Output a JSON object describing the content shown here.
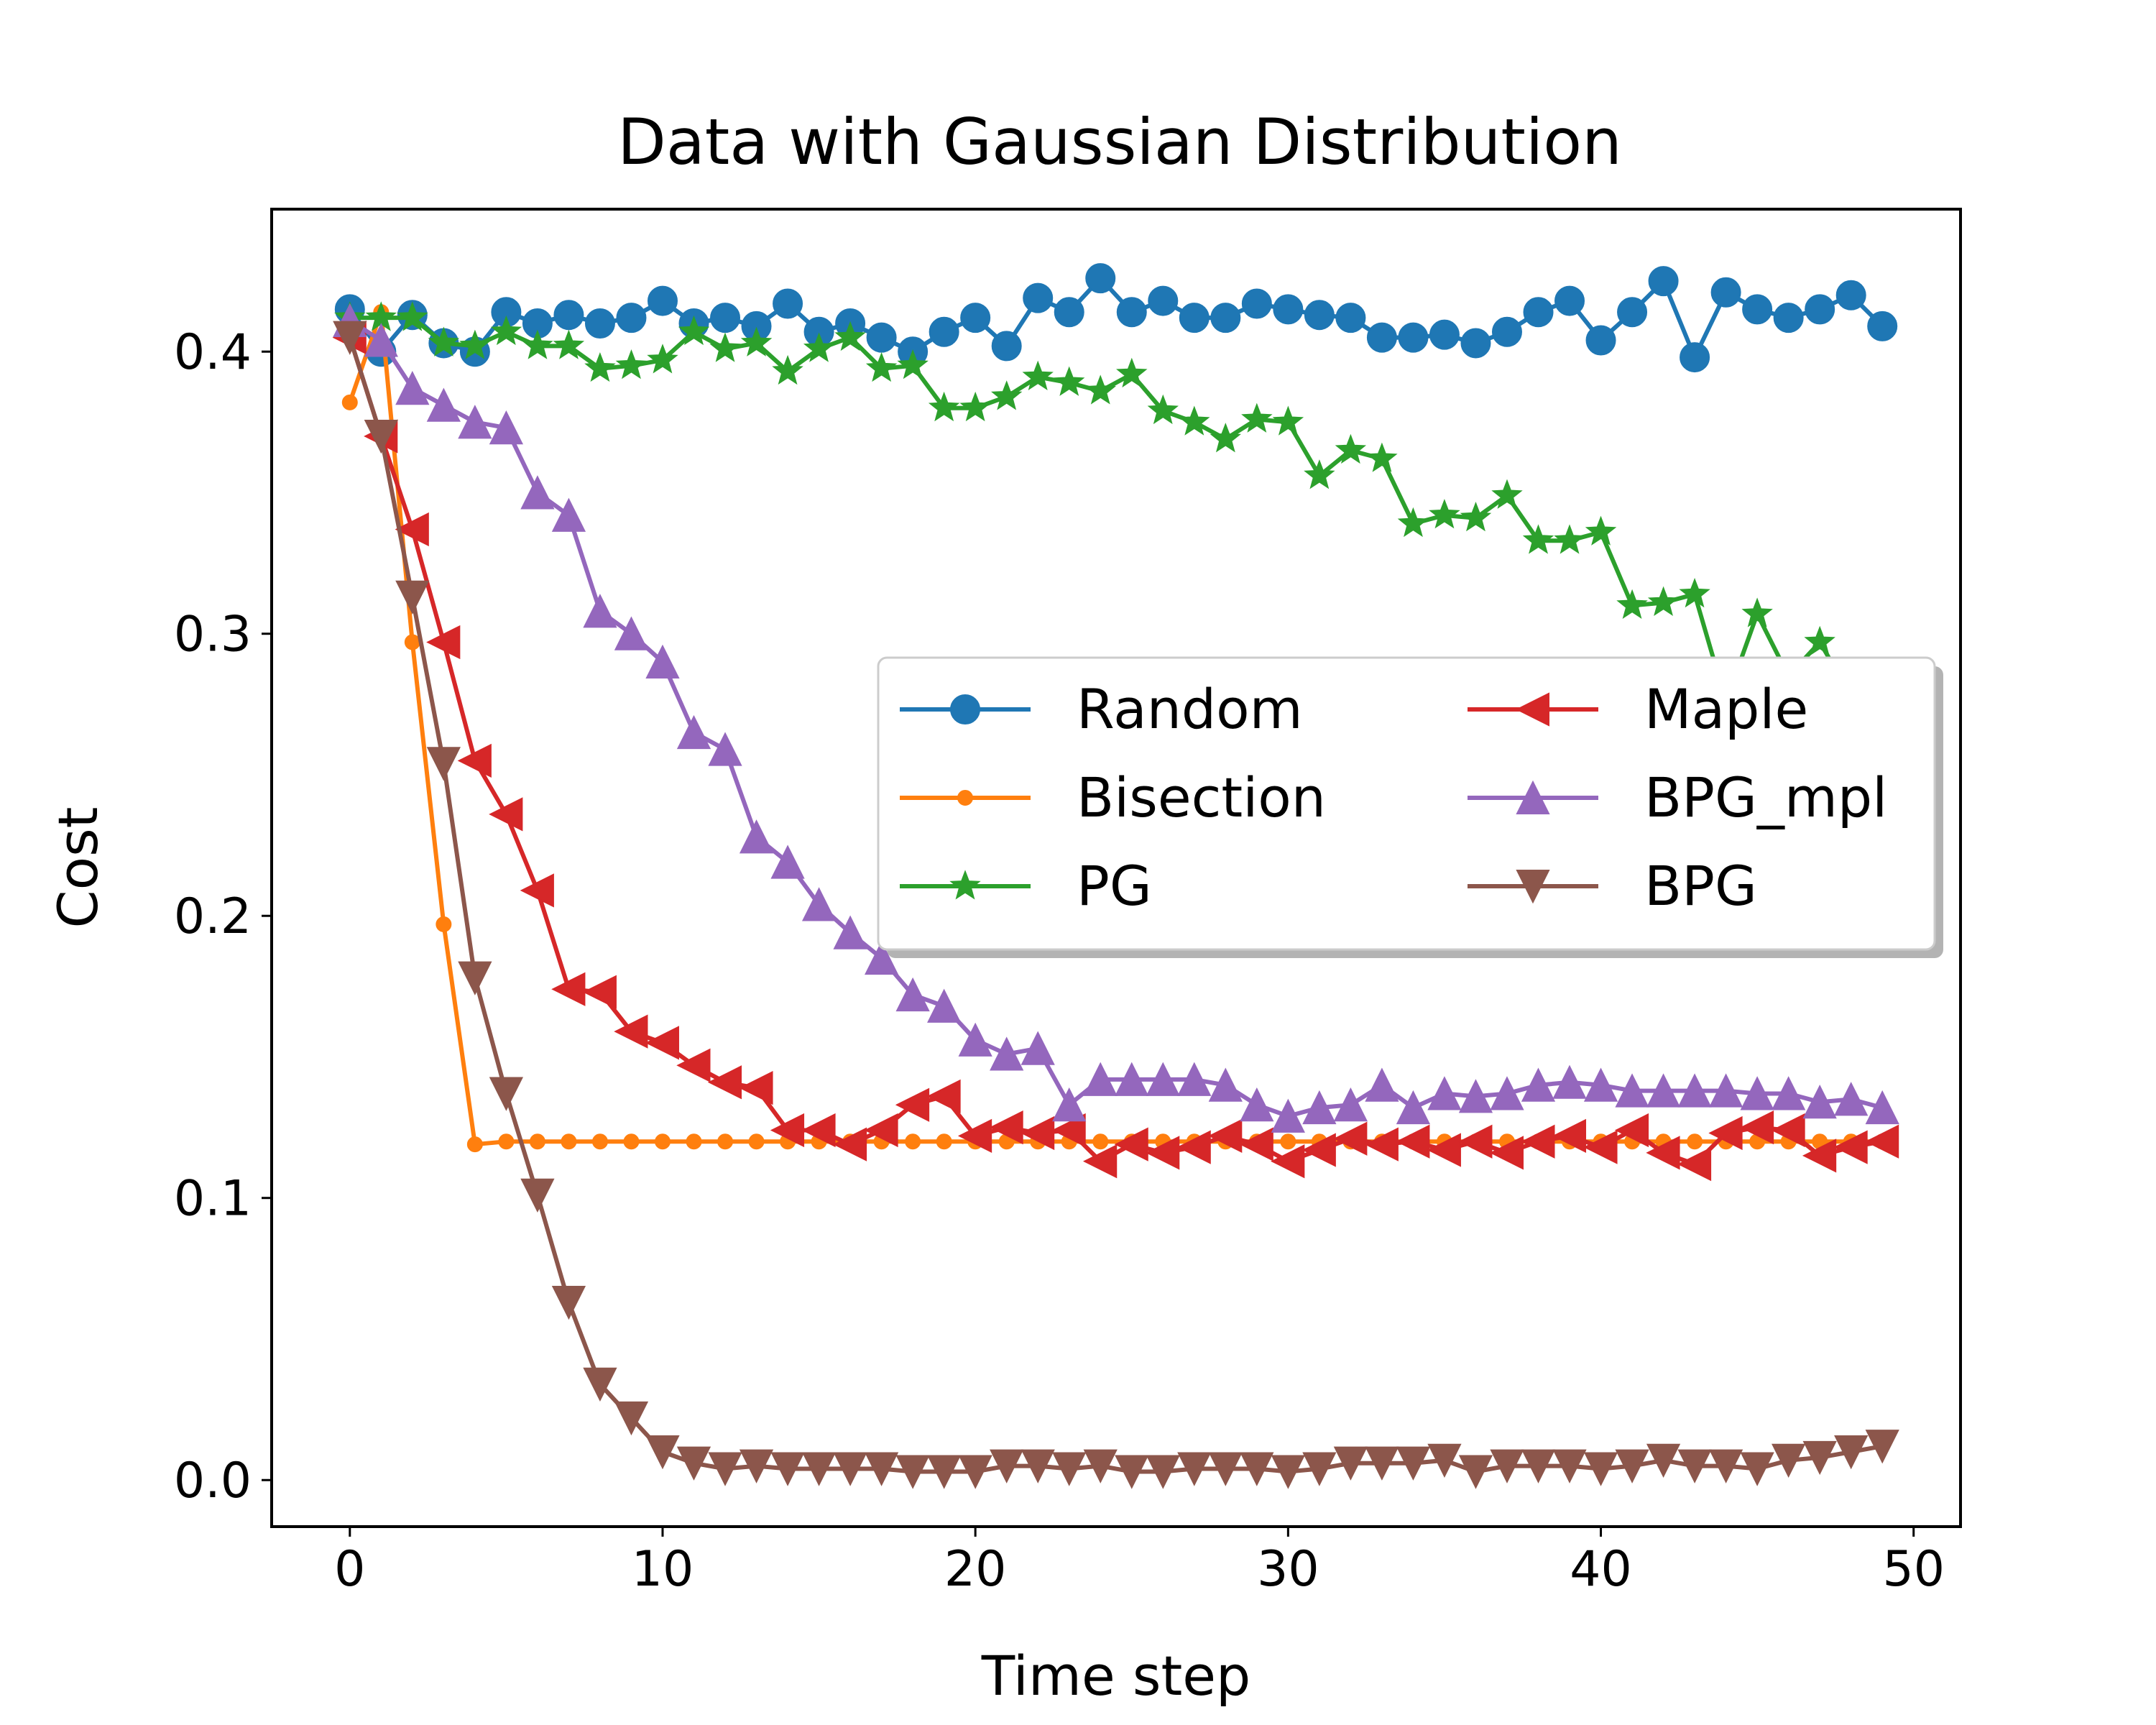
{
  "chart_data": {
    "type": "line",
    "title": "Data with Gaussian Distribution",
    "xlabel": "Time step",
    "ylabel": "Cost",
    "xlim": [
      -2.5,
      51.5
    ],
    "ylim": [
      -0.0165,
      0.4505
    ],
    "xticks": [
      0,
      10,
      20,
      30,
      40,
      50
    ],
    "yticks": [
      0.0,
      0.1,
      0.2,
      0.3,
      0.4
    ],
    "xtick_labels": [
      "0",
      "10",
      "20",
      "30",
      "40",
      "50"
    ],
    "ytick_labels": [
      "0.0",
      "0.1",
      "0.2",
      "0.3",
      "0.4"
    ],
    "grid": false,
    "legend": {
      "placement": "center-right",
      "columns": 2,
      "shadow": true
    },
    "x": [
      0,
      1,
      2,
      3,
      4,
      5,
      6,
      7,
      8,
      9,
      10,
      11,
      12,
      13,
      14,
      15,
      16,
      17,
      18,
      19,
      20,
      21,
      22,
      23,
      24,
      25,
      26,
      27,
      28,
      29,
      30,
      31,
      32,
      33,
      34,
      35,
      36,
      37,
      38,
      39,
      40,
      41,
      42,
      43,
      44,
      45,
      46,
      47,
      48,
      49
    ],
    "series": [
      {
        "name": "Random",
        "color": "#1f77b4",
        "marker": "circle",
        "values": [
          0.415,
          0.4,
          0.413,
          0.403,
          0.4,
          0.414,
          0.41,
          0.413,
          0.41,
          0.412,
          0.418,
          0.41,
          0.412,
          0.409,
          0.417,
          0.407,
          0.41,
          0.405,
          0.4,
          0.407,
          0.412,
          0.402,
          0.419,
          0.414,
          0.426,
          0.414,
          0.418,
          0.412,
          0.412,
          0.417,
          0.415,
          0.413,
          0.412,
          0.405,
          0.405,
          0.406,
          0.403,
          0.407,
          0.414,
          0.418,
          0.404,
          0.414,
          0.425,
          0.398,
          0.421,
          0.415,
          0.412,
          0.415,
          0.42,
          0.409
        ]
      },
      {
        "name": "Bisection",
        "color": "#ff7f0e",
        "marker": "point",
        "values": [
          0.382,
          0.414,
          0.297,
          0.197,
          0.119,
          0.12,
          0.12,
          0.12,
          0.12,
          0.12,
          0.12,
          0.12,
          0.12,
          0.12,
          0.12,
          0.12,
          0.12,
          0.12,
          0.12,
          0.12,
          0.12,
          0.12,
          0.12,
          0.12,
          0.12,
          0.12,
          0.12,
          0.12,
          0.12,
          0.12,
          0.12,
          0.12,
          0.12,
          0.12,
          0.12,
          0.12,
          0.12,
          0.12,
          0.12,
          0.12,
          0.12,
          0.12,
          0.12,
          0.12,
          0.12,
          0.12,
          0.12,
          0.12,
          0.12,
          0.12
        ]
      },
      {
        "name": "PG",
        "color": "#2ca02c",
        "marker": "star",
        "values": [
          0.412,
          0.412,
          0.412,
          0.403,
          0.402,
          0.407,
          0.402,
          0.402,
          0.394,
          0.395,
          0.397,
          0.407,
          0.401,
          0.403,
          0.393,
          0.401,
          0.405,
          0.394,
          0.395,
          0.38,
          0.38,
          0.384,
          0.391,
          0.389,
          0.386,
          0.392,
          0.379,
          0.375,
          0.369,
          0.376,
          0.375,
          0.356,
          0.365,
          0.362,
          0.339,
          0.342,
          0.341,
          0.349,
          0.333,
          0.333,
          0.336,
          0.31,
          0.311,
          0.314,
          0.276,
          0.307,
          0.285,
          0.297,
          0.278,
          0.275
        ]
      },
      {
        "name": "Maple",
        "color": "#d62728",
        "marker": "triangle-left",
        "values": [
          0.405,
          0.37,
          0.337,
          0.297,
          0.255,
          0.236,
          0.209,
          0.174,
          0.173,
          0.159,
          0.155,
          0.147,
          0.141,
          0.139,
          0.124,
          0.124,
          0.119,
          0.124,
          0.133,
          0.136,
          0.122,
          0.125,
          0.123,
          0.124,
          0.113,
          0.119,
          0.116,
          0.118,
          0.122,
          0.119,
          0.113,
          0.117,
          0.121,
          0.119,
          0.12,
          0.117,
          0.12,
          0.116,
          0.12,
          0.122,
          0.118,
          0.124,
          0.116,
          0.112,
          0.123,
          0.125,
          0.124,
          0.115,
          0.118,
          0.12
        ]
      },
      {
        "name": "BPG_mpl",
        "color": "#9467bd",
        "marker": "triangle-up",
        "values": [
          0.411,
          0.404,
          0.387,
          0.381,
          0.375,
          0.373,
          0.35,
          0.342,
          0.308,
          0.3,
          0.29,
          0.265,
          0.259,
          0.228,
          0.219,
          0.204,
          0.194,
          0.185,
          0.172,
          0.168,
          0.156,
          0.151,
          0.153,
          0.133,
          0.142,
          0.142,
          0.142,
          0.142,
          0.14,
          0.133,
          0.129,
          0.132,
          0.133,
          0.14,
          0.132,
          0.137,
          0.136,
          0.137,
          0.14,
          0.141,
          0.14,
          0.138,
          0.138,
          0.138,
          0.138,
          0.137,
          0.137,
          0.134,
          0.135,
          0.132
        ]
      },
      {
        "name": "BPG",
        "color": "#8c564b",
        "marker": "triangle-down",
        "values": [
          0.405,
          0.37,
          0.313,
          0.254,
          0.178,
          0.137,
          0.101,
          0.063,
          0.034,
          0.022,
          0.01,
          0.006,
          0.004,
          0.005,
          0.004,
          0.004,
          0.004,
          0.004,
          0.003,
          0.003,
          0.003,
          0.005,
          0.005,
          0.004,
          0.005,
          0.003,
          0.003,
          0.004,
          0.004,
          0.004,
          0.003,
          0.004,
          0.006,
          0.006,
          0.006,
          0.007,
          0.003,
          0.005,
          0.005,
          0.005,
          0.004,
          0.005,
          0.007,
          0.005,
          0.005,
          0.004,
          0.007,
          0.008,
          0.01,
          0.012
        ]
      }
    ]
  }
}
